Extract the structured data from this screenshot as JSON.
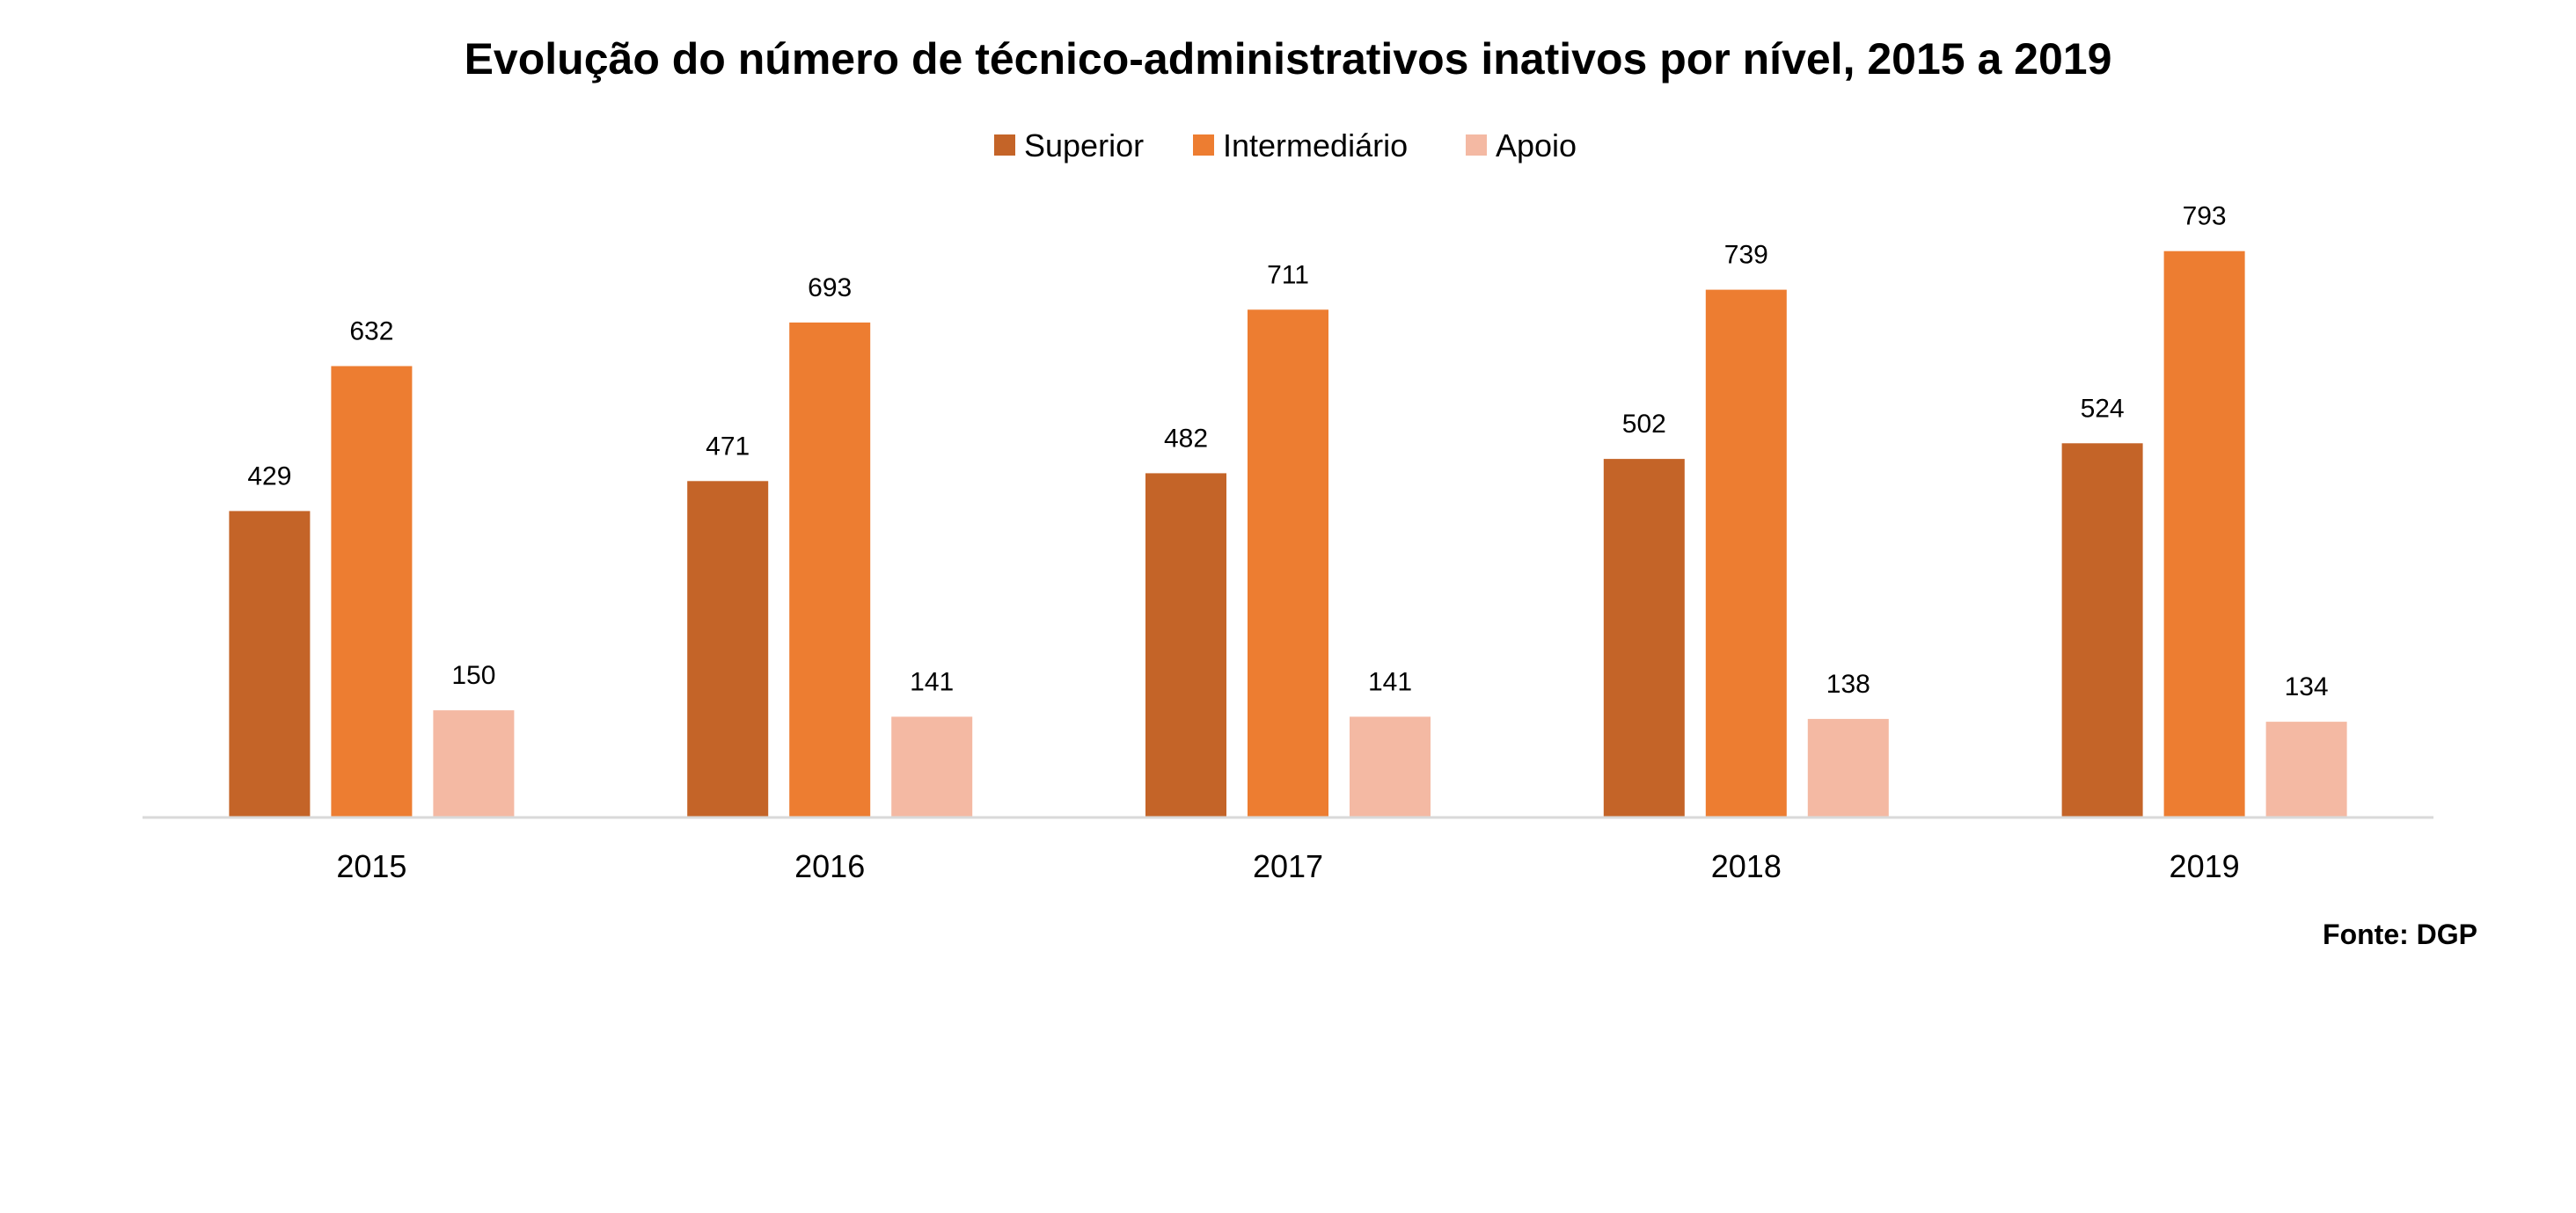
{
  "chart_data": {
    "type": "bar",
    "title": "Evolução do número de técnico-administrativos inativos por nível, 2015 a 2019",
    "categories": [
      "2015",
      "2016",
      "2017",
      "2018",
      "2019"
    ],
    "series": [
      {
        "name": "Superior",
        "values": [
          429,
          471,
          482,
          502,
          524
        ],
        "color": "#C46428"
      },
      {
        "name": "Intermediário",
        "values": [
          632,
          693,
          711,
          739,
          793
        ],
        "color": "#ED7D31"
      },
      {
        "name": "Apoio",
        "values": [
          150,
          141,
          141,
          138,
          134
        ],
        "color": "#F4B9A3"
      }
    ],
    "ylim": [
      0,
      800
    ],
    "xlabel": "",
    "ylabel": "",
    "grid": false,
    "legend": "top",
    "data_labels": true,
    "axis_color": "#D9D9D9"
  },
  "source": {
    "text": "Fonte: DGP"
  }
}
